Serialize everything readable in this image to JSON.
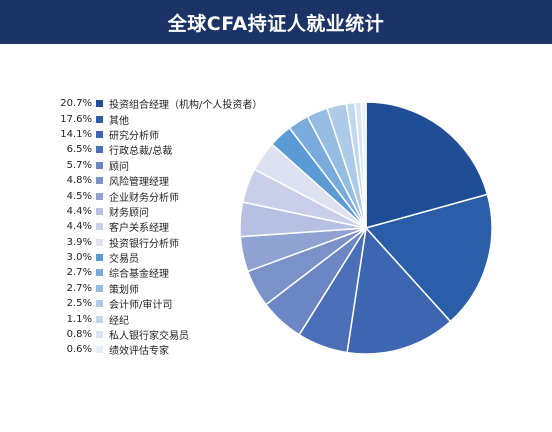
{
  "page_title": "全球CFA持证人就业统计",
  "chart_data": {
    "type": "pie",
    "title": "全球CFA持证人就业统计",
    "legend_position": "left",
    "start": "top, clockwise",
    "slices": [
      {
        "label": "投资组合经理（机构/个人投资者）",
        "pct_text": "20.7%",
        "value": 20.7,
        "color": "#1f4e96"
      },
      {
        "label": "其他",
        "pct_text": "17.6%",
        "value": 17.6,
        "color": "#2a5ea8"
      },
      {
        "label": "研究分析师",
        "pct_text": "14.1%",
        "value": 14.1,
        "color": "#3d66b2"
      },
      {
        "label": "行政总裁/总裁",
        "pct_text": "6.5%",
        "value": 6.5,
        "color": "#4a6fb8"
      },
      {
        "label": "顾问",
        "pct_text": "5.7%",
        "value": 5.7,
        "color": "#6c86c4"
      },
      {
        "label": "风险管理经理",
        "pct_text": "4.8%",
        "value": 4.8,
        "color": "#7b92c9"
      },
      {
        "label": "企业财务分析师",
        "pct_text": "4.5%",
        "value": 4.5,
        "color": "#8fa2d2"
      },
      {
        "label": "财务顾问",
        "pct_text": "4.4%",
        "value": 4.4,
        "color": "#b6c0e2"
      },
      {
        "label": "客户关系经理",
        "pct_text": "4.4%",
        "value": 4.4,
        "color": "#c9cfe8"
      },
      {
        "label": "投资银行分析师",
        "pct_text": "3.9%",
        "value": 3.9,
        "color": "#dde1f1"
      },
      {
        "label": "交易员",
        "pct_text": "3.0%",
        "value": 3.0,
        "color": "#5b9bd5"
      },
      {
        "label": "综合基金经理",
        "pct_text": "2.7%",
        "value": 2.7,
        "color": "#79acdc"
      },
      {
        "label": "策划师",
        "pct_text": "2.7%",
        "value": 2.7,
        "color": "#95bde3"
      },
      {
        "label": "会计师/审计司",
        "pct_text": "2.5%",
        "value": 2.5,
        "color": "#adcbe8"
      },
      {
        "label": "经纪",
        "pct_text": "1.1%",
        "value": 1.1,
        "color": "#c3d8ee"
      },
      {
        "label": "私人银行家交易员",
        "pct_text": "0.8%",
        "value": 0.8,
        "color": "#d6e4f3"
      },
      {
        "label": "绩效评估专家",
        "pct_text": "0.6%",
        "value": 0.6,
        "color": "#e8f0f9"
      }
    ]
  }
}
